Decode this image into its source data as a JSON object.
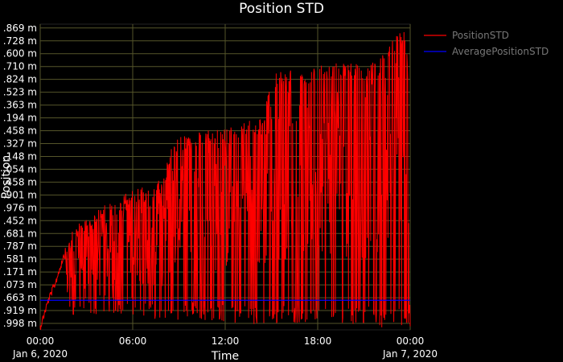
{
  "chart_data": {
    "type": "line",
    "title": "Position STD",
    "xlabel": "Time",
    "ylabel": "Position",
    "x_ticks": [
      {
        "l1": "00:00",
        "l2": "Jan 6, 2020"
      },
      {
        "l1": "06:00",
        "l2": ""
      },
      {
        "l1": "12:00",
        "l2": ""
      },
      {
        "l1": "18:00",
        "l2": ""
      },
      {
        "l1": "00:00",
        "l2": "Jan 7, 2020"
      }
    ],
    "x_range_hours": [
      0,
      24
    ],
    "y_tick_labels": [
      ".998 m",
      ".919 m",
      ".663 m",
      ".073 m",
      ".171 m",
      ".581 m",
      ".787 m",
      ".681 m",
      ".452 m",
      ".976 m",
      ".901 m",
      ".458 m",
      ".054 m",
      ".148 m",
      ".327 m",
      ".458 m",
      ".194 m",
      ".363 m",
      ".523 m",
      ".824 m",
      ".710 m",
      ".600 m",
      ".728 m",
      ".869 m"
    ],
    "y_range": [
      0,
      23.8
    ],
    "grid": true,
    "legend_position": "top-right",
    "series": [
      {
        "name": "PositionSTD",
        "color": "#ff0000",
        "envelope": [
          [
            0.0,
            0.5
          ],
          [
            0.5,
            2.5
          ],
          [
            1.0,
            4.0
          ],
          [
            1.5,
            6.0
          ],
          [
            2.0,
            7.5
          ],
          [
            2.5,
            8.4
          ],
          [
            3.0,
            9.0
          ],
          [
            4.0,
            9.6
          ],
          [
            5.0,
            10.1
          ],
          [
            5.5,
            10.6
          ],
          [
            6.0,
            10.9
          ],
          [
            7.0,
            11.2
          ],
          [
            7.5,
            11.6
          ],
          [
            8.0,
            12.0
          ],
          [
            8.5,
            14.5
          ],
          [
            9.0,
            15.0
          ],
          [
            10.0,
            15.3
          ],
          [
            11.0,
            15.6
          ],
          [
            12.0,
            15.9
          ],
          [
            13.0,
            16.1
          ],
          [
            14.0,
            16.4
          ],
          [
            14.5,
            16.8
          ],
          [
            15.0,
            20.0
          ],
          [
            16.0,
            20.2
          ],
          [
            17.0,
            20.3
          ],
          [
            18.0,
            20.5
          ],
          [
            19.0,
            20.8
          ],
          [
            20.0,
            20.9
          ],
          [
            21.0,
            20.6
          ],
          [
            22.0,
            21.0
          ],
          [
            23.0,
            22.8
          ],
          [
            23.6,
            23.4
          ],
          [
            24.0,
            20.0
          ]
        ],
        "floor": [
          [
            0.0,
            0.4
          ],
          [
            2.0,
            1.0
          ],
          [
            4.0,
            1.2
          ],
          [
            6.0,
            1.2
          ],
          [
            8.0,
            0.4
          ],
          [
            10.0,
            0.8
          ],
          [
            12.0,
            0.6
          ],
          [
            14.0,
            0.3
          ],
          [
            16.0,
            0.5
          ],
          [
            18.0,
            0.6
          ],
          [
            20.0,
            0.5
          ],
          [
            22.0,
            0.2
          ],
          [
            24.0,
            0.1
          ]
        ]
      },
      {
        "name": "AveragePositionSTD",
        "color": "#0000ff",
        "points": [
          [
            0,
            2.3
          ],
          [
            24,
            2.3
          ]
        ]
      }
    ]
  }
}
